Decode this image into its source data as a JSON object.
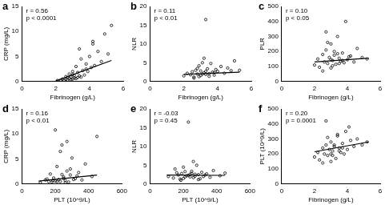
{
  "chart_data": [
    {
      "type": "scatter",
      "title": "a",
      "x_label": "Fibrinogen (g/L)",
      "y_label": "CRP (mg/L)",
      "xlim": [
        0,
        6
      ],
      "xticks": [
        0,
        2,
        4,
        6
      ],
      "ylim": [
        0,
        15
      ],
      "yticks": [
        0,
        5,
        10,
        15
      ],
      "annotations": [
        "r = 0.56",
        "p < 0.0001"
      ],
      "series": [
        {
          "type": "scatter",
          "color": "#000000",
          "marker": "circle",
          "x": [
            2.1,
            2.3,
            2.4,
            2.5,
            2.6,
            2.6,
            2.7,
            2.8,
            2.8,
            2.9,
            2.9,
            3.0,
            3.0,
            3.1,
            3.1,
            3.2,
            3.2,
            3.3,
            3.3,
            3.4,
            3.5,
            3.5,
            3.6,
            3.7,
            3.8,
            3.9,
            4.0,
            4.1,
            4.2,
            4.3,
            4.5,
            4.7,
            4.9,
            5.1,
            5.3,
            3.4,
            3.8,
            4.2,
            2.7,
            3.0
          ],
          "values": [
            0.2,
            0.3,
            0.5,
            0.2,
            0.4,
            1.0,
            0.3,
            0.6,
            1.5,
            0.4,
            0.9,
            0.5,
            2.0,
            0.7,
            1.2,
            0.6,
            3.0,
            0.8,
            1.8,
            1.1,
            0.9,
            4.5,
            2.2,
            1.3,
            3.5,
            2.0,
            5.0,
            2.8,
            7.5,
            3.2,
            6.0,
            4.0,
            9.5,
            5.5,
            11.2,
            6.5,
            2.5,
            8.0,
            0.8,
            1.4
          ]
        },
        {
          "type": "line",
          "color": "#000000",
          "x": [
            2.0,
            5.3
          ],
          "values": [
            0.1,
            4.2
          ]
        }
      ]
    },
    {
      "type": "scatter",
      "title": "b",
      "x_label": "Fibrinogen (g/L)",
      "y_label": "NLR",
      "xlim": [
        0,
        6
      ],
      "xticks": [
        0,
        2,
        4,
        6
      ],
      "ylim": [
        0,
        20
      ],
      "yticks": [
        0,
        5,
        10,
        15,
        20
      ],
      "annotations": [
        "r = 0.11",
        "p < 0.01"
      ],
      "series": [
        {
          "type": "scatter",
          "color": "#000000",
          "marker": "circle",
          "x": [
            2.0,
            2.2,
            2.4,
            2.5,
            2.6,
            2.7,
            2.8,
            2.9,
            3.0,
            3.0,
            3.1,
            3.2,
            3.3,
            3.3,
            3.4,
            3.5,
            3.6,
            3.7,
            3.8,
            3.9,
            4.0,
            4.2,
            4.4,
            4.6,
            4.8,
            5.0,
            5.3,
            2.6,
            2.9,
            3.2,
            3.5,
            3.8,
            3.3,
            2.8,
            3.1
          ],
          "values": [
            1.5,
            2.2,
            1.8,
            2.6,
            1.2,
            3.0,
            2.0,
            4.2,
            1.6,
            2.8,
            5.0,
            2.3,
            1.9,
            16.5,
            3.4,
            2.1,
            4.8,
            2.5,
            1.7,
            3.2,
            2.7,
            4.0,
            2.2,
            3.6,
            2.9,
            5.5,
            3.0,
            0.9,
            1.3,
            6.2,
            1.4,
            2.4,
            2.7,
            3.5,
            2.0
          ]
        },
        {
          "type": "line",
          "color": "#000000",
          "x": [
            2.0,
            5.3
          ],
          "values": [
            1.9,
            2.5
          ]
        }
      ]
    },
    {
      "type": "scatter",
      "title": "c",
      "x_label": "Fibrinogen (g/L)",
      "y_label": "PLR",
      "xlim": [
        0,
        6
      ],
      "xticks": [
        0,
        2,
        4,
        6
      ],
      "ylim": [
        0,
        500
      ],
      "yticks": [
        0,
        100,
        200,
        300,
        400,
        500
      ],
      "annotations": [
        "r = 0.10",
        "p < 0.05"
      ],
      "series": [
        {
          "type": "scatter",
          "color": "#000000",
          "marker": "circle",
          "x": [
            2.0,
            2.2,
            2.3,
            2.5,
            2.6,
            2.7,
            2.8,
            2.9,
            3.0,
            3.0,
            3.1,
            3.2,
            3.3,
            3.4,
            3.5,
            3.6,
            3.7,
            3.8,
            3.9,
            4.0,
            4.2,
            4.4,
            4.6,
            4.9,
            5.2,
            2.5,
            2.8,
            3.1,
            3.4,
            3.7,
            2.7,
            3.2,
            3.5,
            4.1,
            3.0
          ],
          "values": [
            110,
            150,
            95,
            180,
            130,
            210,
            120,
            160,
            90,
            250,
            140,
            175,
            115,
            300,
            155,
            135,
            190,
            125,
            400,
            145,
            170,
            130,
            220,
            160,
            150,
            70,
            260,
            105,
            185,
            140,
            330,
            200,
            120,
            165,
            145
          ]
        },
        {
          "type": "line",
          "color": "#000000",
          "x": [
            2.0,
            5.3
          ],
          "values": [
            130,
            155
          ]
        }
      ]
    },
    {
      "type": "scatter",
      "title": "d",
      "x_label": "PLT (10^9/L)",
      "y_label": "CRP (mg/L)",
      "xlim": [
        0,
        600
      ],
      "xticks": [
        0,
        200,
        400,
        600
      ],
      "ylim": [
        0,
        15
      ],
      "yticks": [
        0,
        5,
        10,
        15
      ],
      "annotations": [
        "r = 0.16",
        "p < 0.01"
      ],
      "series": [
        {
          "type": "scatter",
          "color": "#000000",
          "marker": "circle",
          "x": [
            110,
            140,
            160,
            170,
            180,
            190,
            200,
            210,
            220,
            230,
            240,
            250,
            260,
            270,
            280,
            290,
            300,
            310,
            320,
            340,
            360,
            380,
            420,
            450,
            150,
            200,
            230,
            260,
            290,
            330,
            210,
            240,
            270,
            185,
            250
          ],
          "values": [
            0.3,
            0.8,
            0.5,
            2.0,
            0.4,
            1.2,
            0.6,
            3.5,
            0.9,
            0.5,
            7.8,
            1.4,
            0.7,
            2.6,
            0.4,
            1.8,
            5.2,
            0.9,
            1.1,
            2.3,
            0.8,
            4.0,
            1.5,
            9.5,
            1.0,
            10.8,
            6.5,
            0.3,
            3.0,
            1.6,
            0.5,
            1.9,
            8.5,
            0.7,
            1.1
          ]
        },
        {
          "type": "line",
          "color": "#000000",
          "x": [
            100,
            450
          ],
          "values": [
            0.6,
            1.8
          ]
        }
      ]
    },
    {
      "type": "scatter",
      "title": "e",
      "x_label": "PLT (10^9/L)",
      "y_label": "NLR",
      "xlim": [
        0,
        600
      ],
      "xticks": [
        0,
        200,
        400,
        600
      ],
      "ylim": [
        0,
        20
      ],
      "yticks": [
        0,
        5,
        10,
        15,
        20
      ],
      "annotations": [
        "r = -0.03",
        "p = 0.45"
      ],
      "series": [
        {
          "type": "scatter",
          "color": "#000000",
          "marker": "circle",
          "x": [
            110,
            140,
            160,
            170,
            180,
            190,
            200,
            210,
            220,
            230,
            240,
            250,
            260,
            270,
            280,
            290,
            300,
            310,
            320,
            340,
            360,
            380,
            420,
            450,
            150,
            200,
            230,
            260,
            290,
            330,
            210,
            240,
            270,
            185,
            250
          ],
          "values": [
            2.0,
            1.6,
            3.0,
            2.4,
            1.3,
            2.8,
            4.5,
            1.9,
            2.2,
            16.5,
            2.6,
            3.4,
            1.7,
            2.1,
            5.0,
            2.5,
            1.4,
            3.1,
            2.0,
            2.7,
            1.8,
            3.6,
            2.2,
            2.9,
            4.0,
            1.5,
            2.3,
            6.0,
            1.2,
            2.4,
            3.3,
            1.9,
            2.6,
            1.0,
            2.8
          ]
        },
        {
          "type": "line",
          "color": "#000000",
          "x": [
            100,
            450
          ],
          "values": [
            2.4,
            2.3
          ]
        }
      ]
    },
    {
      "type": "scatter",
      "title": "f",
      "x_label": "Fibrinogen (g/L)",
      "y_label": "PLT (10^9/L)",
      "xlim": [
        0,
        6
      ],
      "xticks": [
        0,
        2,
        4,
        6
      ],
      "ylim": [
        0,
        500
      ],
      "yticks": [
        0,
        100,
        200,
        300,
        400,
        500
      ],
      "annotations": [
        "r = 0.20",
        "p = 0.0001"
      ],
      "series": [
        {
          "type": "scatter",
          "color": "#000000",
          "marker": "circle",
          "x": [
            2.0,
            2.2,
            2.3,
            2.5,
            2.6,
            2.7,
            2.8,
            2.9,
            3.0,
            3.0,
            3.1,
            3.2,
            3.3,
            3.4,
            3.5,
            3.6,
            3.7,
            3.8,
            3.9,
            4.0,
            4.2,
            4.4,
            4.6,
            4.9,
            5.2,
            2.5,
            2.8,
            3.1,
            3.4,
            3.7,
            2.7,
            3.2,
            3.5,
            4.1,
            3.0
          ],
          "values": [
            180,
            210,
            160,
            240,
            200,
            260,
            190,
            230,
            150,
            280,
            220,
            250,
            170,
            320,
            240,
            210,
            270,
            200,
            350,
            230,
            290,
            250,
            300,
            260,
            280,
            140,
            310,
            190,
            330,
            240,
            420,
            260,
            220,
            380,
            200
          ]
        },
        {
          "type": "line",
          "color": "#000000",
          "x": [
            2.0,
            5.3
          ],
          "values": [
            215,
            280
          ]
        }
      ]
    }
  ]
}
